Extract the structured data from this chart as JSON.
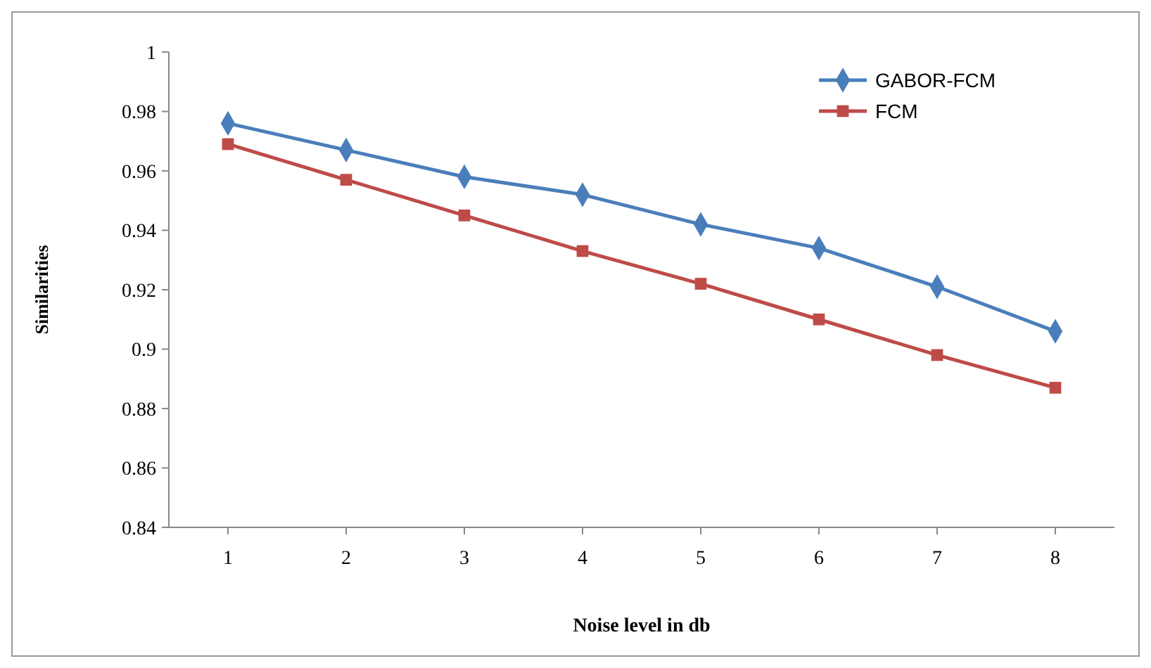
{
  "chart_data": {
    "type": "line",
    "xlabel": "Noise level in db",
    "ylabel": "Similarities",
    "categories": [
      "1",
      "2",
      "3",
      "4",
      "5",
      "6",
      "7",
      "8"
    ],
    "series": [
      {
        "name": "GABOR-FCM",
        "color": "#4a7ebb",
        "marker": "diamond",
        "values": [
          0.976,
          0.967,
          0.958,
          0.952,
          0.942,
          0.934,
          0.921,
          0.906
        ]
      },
      {
        "name": "FCM",
        "color": "#be4b48",
        "marker": "square",
        "values": [
          0.969,
          0.957,
          0.945,
          0.933,
          0.922,
          0.91,
          0.898,
          0.887
        ]
      }
    ],
    "ylim": [
      0.84,
      1
    ],
    "yticks": [
      0.84,
      0.86,
      0.88,
      0.9,
      0.92,
      0.94,
      0.96,
      0.98,
      1
    ],
    "grid": false,
    "legend": "top right"
  }
}
